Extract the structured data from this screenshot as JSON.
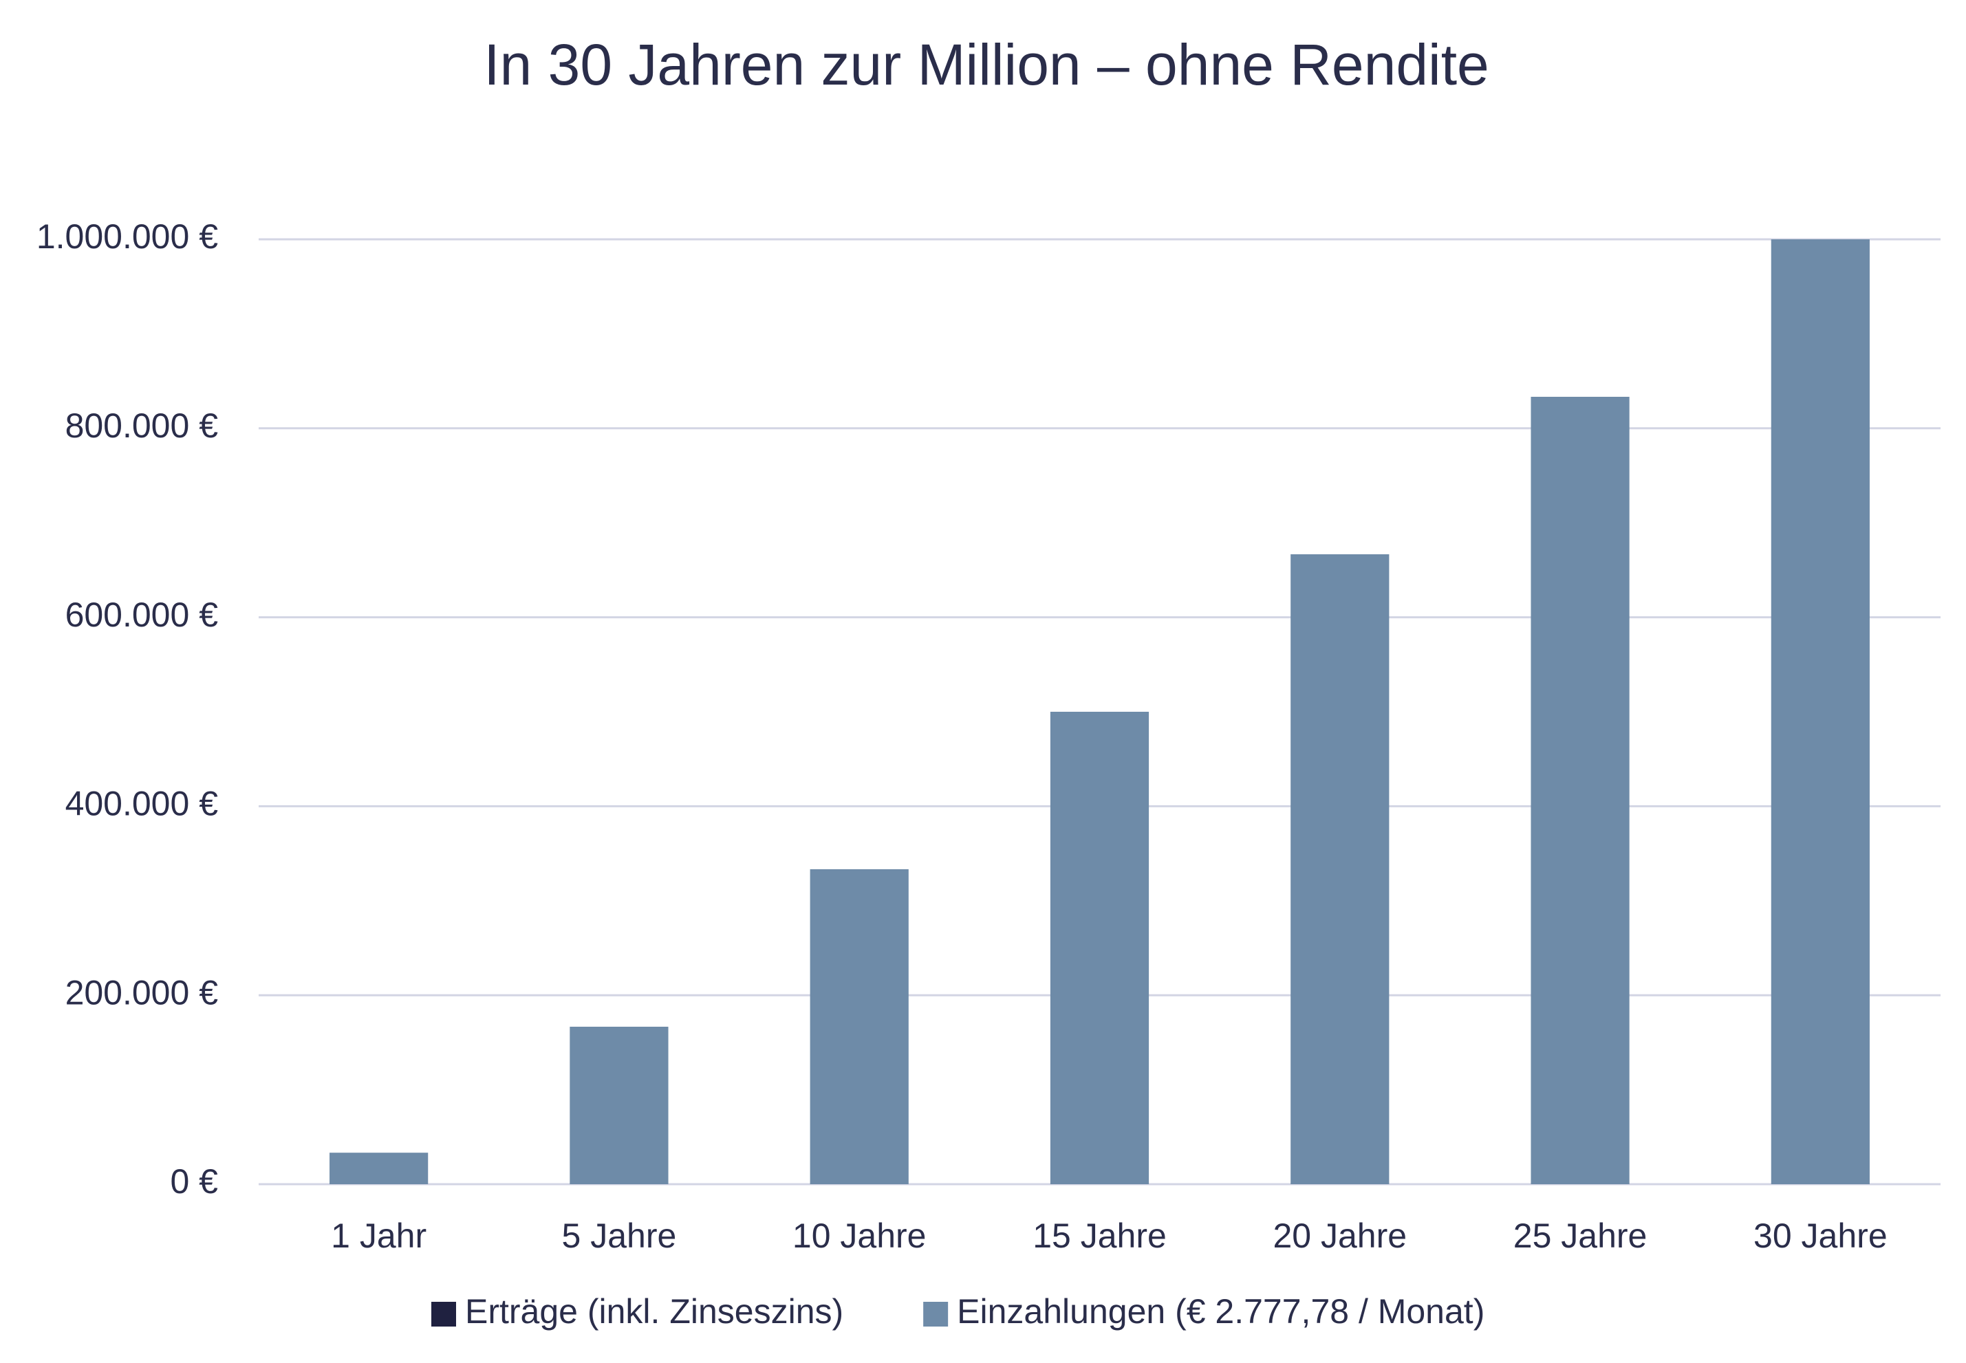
{
  "chart_data": {
    "type": "bar",
    "stacked": true,
    "title": "In 30 Jahren zur Million – ohne Rendite",
    "categories": [
      "1 Jahr",
      "5 Jahre",
      "10 Jahre",
      "15 Jahre",
      "20 Jahre",
      "25 Jahre",
      "30 Jahre"
    ],
    "series": [
      {
        "name": "Einzahlungen (€ 2.777,78 / Monat)",
        "color": "#6e8ba8",
        "values": [
          33333,
          166667,
          333333,
          500000,
          666667,
          833333,
          1000000
        ]
      },
      {
        "name": "Erträge (inkl. Zinseszins)",
        "color": "#1f2140",
        "values": [
          0,
          0,
          0,
          0,
          0,
          0,
          0
        ]
      }
    ],
    "legend_order": [
      1,
      0
    ],
    "ylim": [
      0,
      1000000
    ],
    "yticks": [
      {
        "value": 0,
        "label": "0 €"
      },
      {
        "value": 200000,
        "label": "200.000 €"
      },
      {
        "value": 400000,
        "label": "400.000 €"
      },
      {
        "value": 600000,
        "label": "600.000 €"
      },
      {
        "value": 800000,
        "label": "800.000 €"
      },
      {
        "value": 1000000,
        "label": "1.000.000 €"
      }
    ],
    "grid": true,
    "legend_position": "bottom"
  }
}
